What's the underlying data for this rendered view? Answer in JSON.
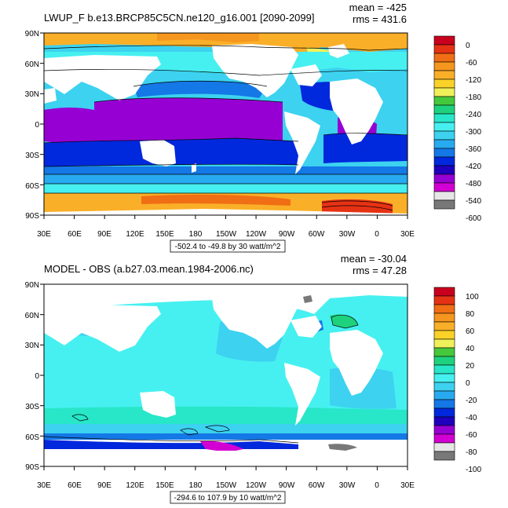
{
  "panels": [
    {
      "title": "LWUP_F b.e13.BRCP85C5CN.ne120_g16.001 [2090-2099]",
      "mean": "mean = -425",
      "rms": "rms = 431.6",
      "contour_info": "-502.4 to -49.8 by 30 watt/m^2",
      "lat_labels": [
        "90N",
        "60N",
        "30N",
        "0",
        "30S",
        "60S",
        "90S"
      ],
      "lon_labels": [
        "30E",
        "60E",
        "90E",
        "120E",
        "150E",
        "180",
        "150W",
        "120W",
        "90W",
        "60W",
        "30W",
        "0",
        "30E"
      ],
      "colorbar": {
        "labels": [
          "0",
          "-60",
          "-120",
          "-180",
          "-240",
          "-300",
          "-360",
          "-420",
          "-480",
          "-540",
          "-600"
        ],
        "colors": [
          "#c8001e",
          "#e63214",
          "#f06e14",
          "#f5961e",
          "#faaf28",
          "#fad228",
          "#f0f05a",
          "#46c83c",
          "#1ed27d",
          "#28e6c8",
          "#46f0f0",
          "#3cd2f0",
          "#28aaf0",
          "#1478e6",
          "#0028dc",
          "#1e00be",
          "#9600d2",
          "#d200d2",
          "#e6e6e6",
          "#787878"
        ]
      }
    },
    {
      "title": "MODEL - OBS (a.b27.03.mean.1984-2006.nc)",
      "mean": "mean = -30.04",
      "rms": "rms = 47.28",
      "contour_info": "-294.6 to 107.9 by 10 watt/m^2",
      "lat_labels": [
        "90N",
        "60N",
        "30N",
        "0",
        "30S",
        "60S",
        "90S"
      ],
      "lon_labels": [
        "30E",
        "60E",
        "90E",
        "120E",
        "150E",
        "180",
        "150W",
        "120W",
        "90W",
        "60W",
        "30W",
        "0",
        "30E"
      ],
      "colorbar": {
        "labels": [
          "100",
          "80",
          "60",
          "40",
          "20",
          "0",
          "-20",
          "-40",
          "-60",
          "-80",
          "-100"
        ],
        "colors": [
          "#c8001e",
          "#e63214",
          "#f06e14",
          "#f5961e",
          "#faaf28",
          "#fad228",
          "#f0f05a",
          "#46c83c",
          "#1ed27d",
          "#28e6c8",
          "#46f0f0",
          "#3cd2f0",
          "#28aaf0",
          "#1478e6",
          "#0028dc",
          "#1e00be",
          "#9600d2",
          "#d200d2",
          "#e6e6e6",
          "#787878"
        ]
      }
    }
  ]
}
